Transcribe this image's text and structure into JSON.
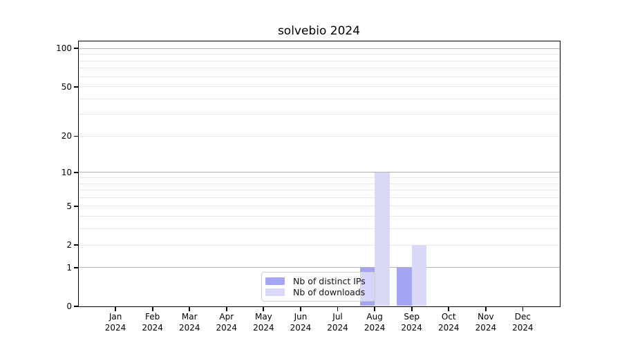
{
  "chart_data": {
    "type": "bar",
    "title": "solvebio 2024",
    "categories": [
      "Jan",
      "Feb",
      "Mar",
      "Apr",
      "May",
      "Jun",
      "Jul",
      "Aug",
      "Sep",
      "Oct",
      "Nov",
      "Dec"
    ],
    "x_year_label": "2024",
    "series": [
      {
        "name": "Nb of distinct IPs",
        "slug": "distinct-ips",
        "color": "#a5a5f5",
        "values": [
          0,
          0,
          0,
          0,
          0,
          0,
          0,
          1,
          1,
          0,
          0,
          0
        ]
      },
      {
        "name": "Nb of downloads",
        "slug": "downloads",
        "color": "#d9d9f7",
        "values": [
          0,
          0,
          0,
          0,
          0,
          0,
          0,
          10,
          2,
          0,
          0,
          0
        ]
      }
    ],
    "y_scale": "log10(1+v)",
    "y_ticks": [
      0,
      1,
      2,
      5,
      10,
      20,
      50,
      100
    ],
    "y_major_gridlines": [
      1,
      10,
      100
    ],
    "y_minor_gridlines": [
      2,
      3,
      4,
      5,
      6,
      7,
      8,
      9,
      20,
      30,
      40,
      50,
      60,
      70,
      80,
      90
    ],
    "ylim": [
      0,
      114
    ],
    "xlabel": "",
    "ylabel": "",
    "grid": true,
    "legend_position": "lower center"
  },
  "colors": {
    "axis": "#000000",
    "major_grid": "#b2b2b2",
    "minor_grid": "#e7e7e7",
    "legend_border": "#cccccc"
  }
}
